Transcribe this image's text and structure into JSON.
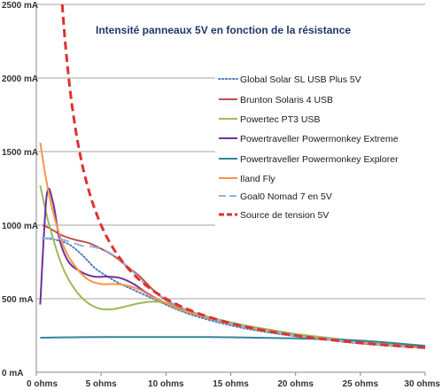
{
  "chart_data": {
    "type": "line",
    "title": "Intensité panneaux  5V en fonction de la résistance",
    "xlabel": "",
    "ylabel": "",
    "xlim": [
      0,
      30
    ],
    "ylim": [
      0,
      2500
    ],
    "grid": "horizontal",
    "legend_position": "right",
    "x_ticks": [
      {
        "value": 0,
        "label": "0 ohms"
      },
      {
        "value": 5,
        "label": "5 ohms"
      },
      {
        "value": 10,
        "label": "10 ohms"
      },
      {
        "value": 15,
        "label": "15 ohms"
      },
      {
        "value": 20,
        "label": "20 ohms"
      },
      {
        "value": 25,
        "label": "25 ohms"
      },
      {
        "value": 30,
        "label": "30 ohms"
      }
    ],
    "y_ticks": [
      {
        "value": 0,
        "label": "0 mA"
      },
      {
        "value": 500,
        "label": "500 mA"
      },
      {
        "value": 1000,
        "label": "1000 mA"
      },
      {
        "value": 1500,
        "label": "1500 mA"
      },
      {
        "value": 2000,
        "label": "2000 mA"
      },
      {
        "value": 2500,
        "label": "2500 mA"
      }
    ],
    "series": [
      {
        "name": "Global Solar SL USB Plus 5V",
        "color": "#4f81bd",
        "dash": "dotted",
        "points": [
          [
            0.5,
            910
          ],
          [
            1.5,
            900
          ],
          [
            2.5,
            870
          ],
          [
            3.5,
            800
          ],
          [
            4.5,
            710
          ],
          [
            5.5,
            650
          ],
          [
            6.5,
            600
          ],
          [
            7.5,
            560
          ],
          [
            8.5,
            520
          ],
          [
            9.5,
            480
          ],
          [
            10.5,
            440
          ],
          [
            12,
            390
          ],
          [
            14,
            340
          ],
          [
            16,
            300
          ],
          [
            18,
            270
          ],
          [
            20,
            245
          ],
          [
            22,
            225
          ],
          [
            25,
            195
          ],
          [
            28,
            175
          ],
          [
            30,
            165
          ]
        ]
      },
      {
        "name": "Brunton Solaris 4 USB",
        "color": "#c0504d",
        "dash": "solid",
        "points": [
          [
            0.5,
            1000
          ],
          [
            1,
            980
          ],
          [
            2,
            930
          ],
          [
            3,
            900
          ],
          [
            4,
            880
          ],
          [
            5,
            840
          ],
          [
            6,
            790
          ],
          [
            7,
            720
          ],
          [
            8,
            650
          ],
          [
            9,
            560
          ],
          [
            10,
            490
          ],
          [
            11,
            440
          ],
          [
            12,
            410
          ],
          [
            14,
            350
          ],
          [
            16,
            310
          ],
          [
            18,
            280
          ],
          [
            20,
            250
          ],
          [
            22,
            230
          ],
          [
            25,
            200
          ],
          [
            28,
            180
          ],
          [
            30,
            165
          ]
        ]
      },
      {
        "name": "Powertec PT3 USB",
        "color": "#9bbb59",
        "dash": "solid",
        "points": [
          [
            0.3,
            1270
          ],
          [
            1,
            1000
          ],
          [
            2,
            720
          ],
          [
            3,
            560
          ],
          [
            4,
            470
          ],
          [
            5,
            430
          ],
          [
            6,
            430
          ],
          [
            7,
            450
          ],
          [
            8,
            470
          ],
          [
            9,
            480
          ],
          [
            10,
            470
          ],
          [
            11,
            440
          ],
          [
            12,
            410
          ],
          [
            14,
            360
          ],
          [
            16,
            320
          ],
          [
            18,
            290
          ],
          [
            20,
            260
          ],
          [
            22,
            240
          ],
          [
            25,
            210
          ],
          [
            28,
            190
          ],
          [
            30,
            180
          ]
        ]
      },
      {
        "name": "Powertraveller Powermonkey Extreme",
        "color": "#7030a0",
        "dash": "solid",
        "points": [
          [
            0.3,
            460
          ],
          [
            0.8,
            1200
          ],
          [
            1.3,
            1150
          ],
          [
            1.8,
            900
          ],
          [
            2.5,
            750
          ],
          [
            3.5,
            680
          ],
          [
            4.5,
            650
          ],
          [
            5.5,
            650
          ],
          [
            6.5,
            640
          ],
          [
            7.5,
            600
          ],
          [
            8.5,
            540
          ],
          [
            9.5,
            490
          ],
          [
            10.5,
            450
          ],
          [
            12,
            400
          ],
          [
            14,
            350
          ],
          [
            16,
            310
          ],
          [
            18,
            280
          ],
          [
            20,
            250
          ],
          [
            22,
            230
          ],
          [
            25,
            200
          ],
          [
            28,
            180
          ],
          [
            30,
            170
          ]
        ]
      },
      {
        "name": "Powertraveller Powermonkey Explorer",
        "color": "#31859c",
        "dash": "solid",
        "points": [
          [
            0.3,
            235
          ],
          [
            3,
            238
          ],
          [
            6,
            240
          ],
          [
            10,
            240
          ],
          [
            15,
            238
          ],
          [
            20,
            230
          ],
          [
            25,
            215
          ],
          [
            30,
            180
          ]
        ]
      },
      {
        "name": "Iland Fly",
        "color": "#f79646",
        "dash": "solid",
        "points": [
          [
            0.3,
            1560
          ],
          [
            1,
            1200
          ],
          [
            2,
            880
          ],
          [
            3,
            720
          ],
          [
            4,
            630
          ],
          [
            5,
            600
          ],
          [
            6,
            600
          ],
          [
            7,
            590
          ],
          [
            8,
            560
          ],
          [
            9,
            510
          ],
          [
            10,
            470
          ],
          [
            11,
            430
          ],
          [
            12,
            400
          ],
          [
            14,
            350
          ],
          [
            16,
            310
          ],
          [
            18,
            280
          ],
          [
            20,
            250
          ],
          [
            22,
            230
          ],
          [
            25,
            200
          ],
          [
            28,
            180
          ],
          [
            30,
            165
          ]
        ]
      },
      {
        "name": "Goal0 Nomad 7 en 5V",
        "color": "#95b3d7",
        "dash": "longdash",
        "points": [
          [
            0.5,
            910
          ],
          [
            1.5,
            910
          ],
          [
            2.5,
            890
          ],
          [
            3.5,
            860
          ],
          [
            4.5,
            850
          ],
          [
            5.5,
            820
          ],
          [
            6.5,
            760
          ],
          [
            7.5,
            680
          ],
          [
            8.5,
            590
          ],
          [
            9.5,
            520
          ],
          [
            10.5,
            470
          ],
          [
            12,
            410
          ],
          [
            14,
            350
          ],
          [
            16,
            310
          ],
          [
            18,
            280
          ],
          [
            20,
            250
          ],
          [
            22,
            230
          ],
          [
            25,
            200
          ],
          [
            28,
            175
          ],
          [
            30,
            165
          ]
        ]
      },
      {
        "name": "Source de tension 5V",
        "color": "#e03030",
        "dash": "dashed",
        "function": "5000/x",
        "x_start": 2.0,
        "x_end": 30
      }
    ]
  }
}
